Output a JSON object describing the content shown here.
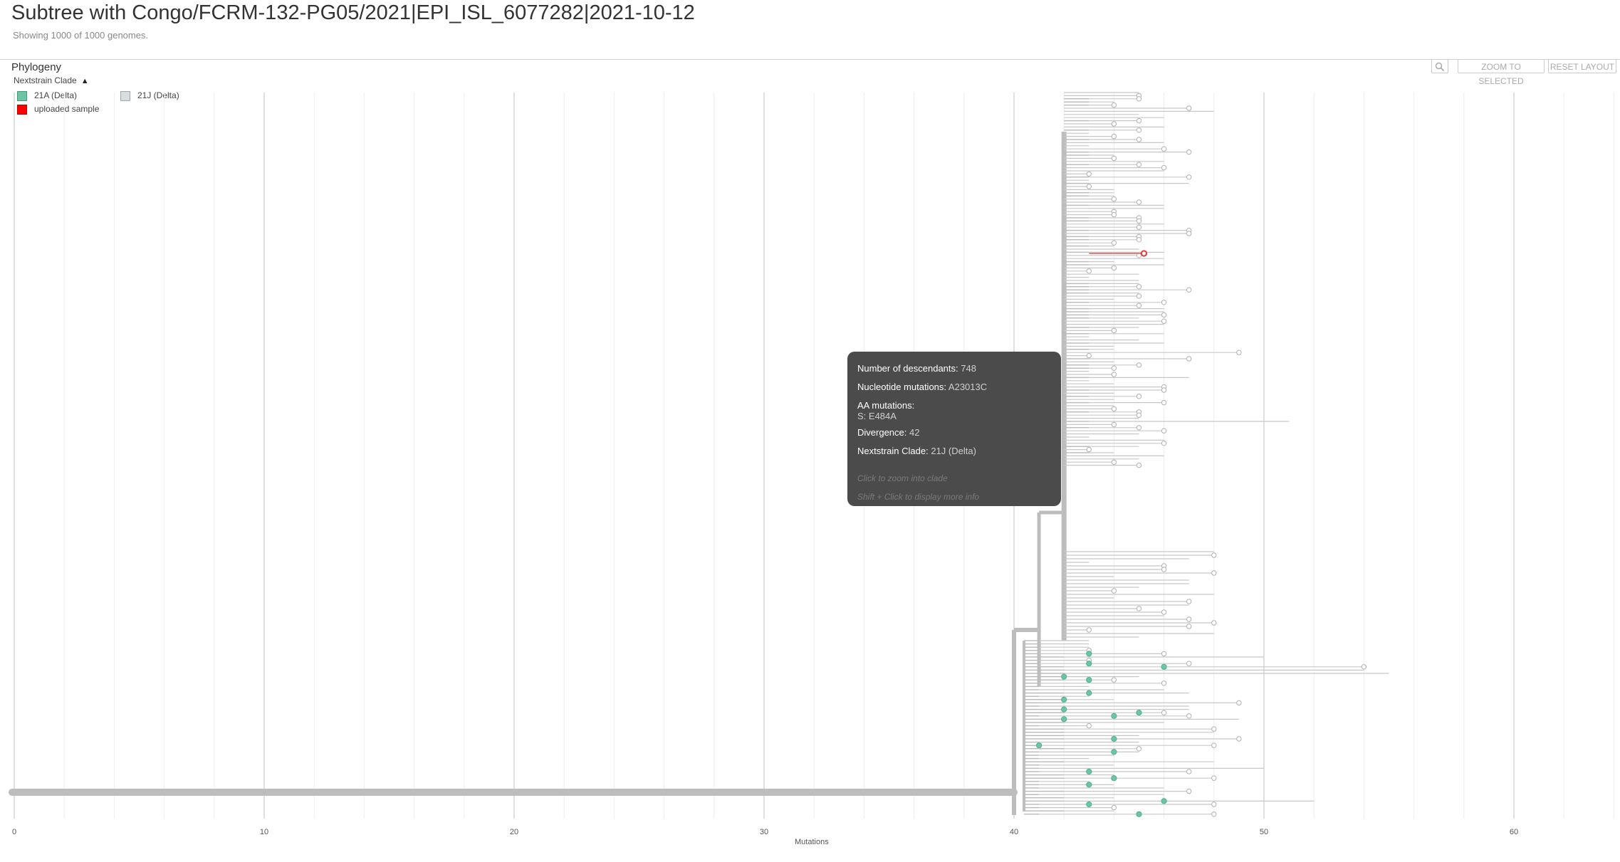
{
  "header": {
    "title": "Subtree with Congo/FCRM-132-PG05/2021|EPI_ISL_6077282|2021-10-12",
    "subtitle": "Showing 1000 of 1000 genomes."
  },
  "panel": {
    "title": "Phylogeny",
    "zoom_selected": "ZOOM TO SELECTED",
    "reset_layout": "RESET LAYOUT",
    "search_icon": "search-icon"
  },
  "legend": {
    "title": "Nextstrain Clade",
    "items": [
      {
        "label": "21A (Delta)",
        "color": "#6bc6a5"
      },
      {
        "label": "21J (Delta)",
        "color": "#d9dde0"
      },
      {
        "label": "uploaded sample",
        "color": "#ff0000"
      }
    ]
  },
  "axis": {
    "label": "Mutations",
    "ticks": [
      "0",
      "10",
      "20",
      "30",
      "40",
      "50",
      "60"
    ]
  },
  "tooltip": {
    "descendants_label": "Number of descendants:",
    "descendants_value": "748",
    "nuc_label": "Nucleotide mutations:",
    "nuc_value": "A23013C",
    "aa_label": "AA mutations:",
    "aa_value": "S: E484A",
    "divergence_label": "Divergence:",
    "divergence_value": "42",
    "clade_label": "Nextstrain Clade:",
    "clade_value": "21J (Delta)",
    "hint1": "Click to zoom into clade",
    "hint2": "Shift + Click to display more info"
  },
  "colors": {
    "branch": "#bdbdbd",
    "clade_21A": "#6bc6a5",
    "clade_21J": "#ffffff",
    "uploaded": "#e53935"
  }
}
